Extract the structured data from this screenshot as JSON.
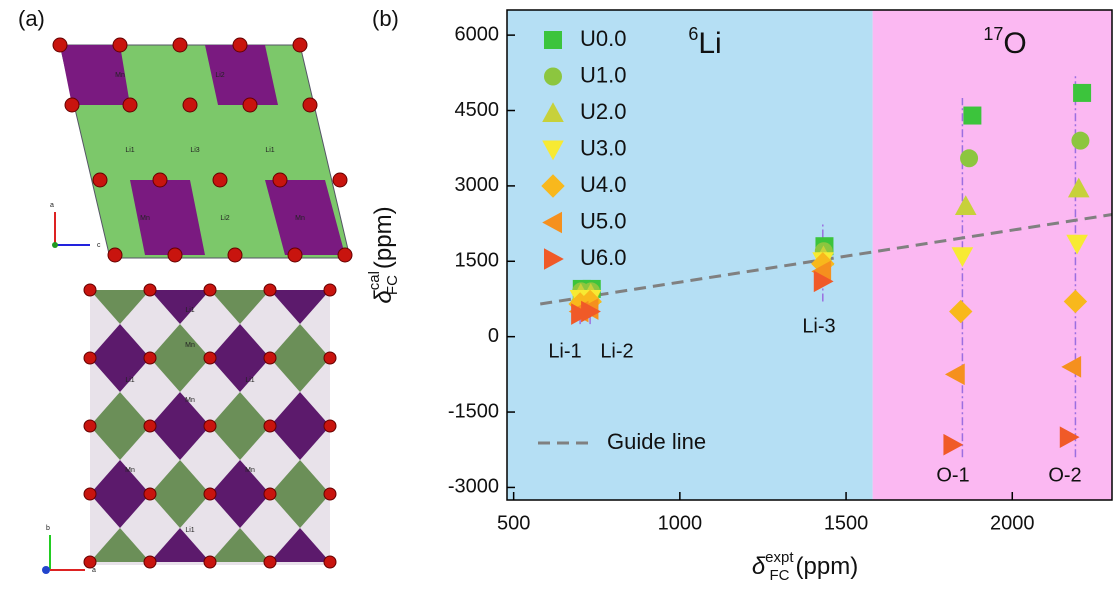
{
  "panel_a": {
    "label": "(a)",
    "top_atoms": [
      "Mn",
      "Li2",
      "Li1",
      "Li3",
      "Li1",
      "Mn",
      "Li2",
      "Mn"
    ],
    "top_axes": [
      "a",
      "c"
    ],
    "bottom_atoms": [
      "Li1",
      "Mn",
      "Mn",
      "Li1",
      "Li1",
      "Mn",
      "Mn",
      "Li1"
    ],
    "bottom_axes": [
      "b",
      "a"
    ]
  },
  "chart_data": {
    "type": "scatter",
    "panel_label": "(b)",
    "x_label": {
      "symbol": "δ",
      "sup": "expt",
      "sub": "FC",
      "unit": "(ppm)"
    },
    "y_label": {
      "symbol": "δ",
      "sup": "cal",
      "sub": "FC",
      "unit": "(ppm)"
    },
    "regions": [
      {
        "sup": "6",
        "text": "Li",
        "x": [
          480,
          1580
        ],
        "color": "#b5dff4"
      },
      {
        "sup": "17",
        "text": "O",
        "x": [
          1580,
          2300
        ],
        "color": "#fbb8f2"
      }
    ],
    "xlim": [
      480,
      2300
    ],
    "ylim": [
      -3250,
      6500
    ],
    "xticks": [
      500,
      1000,
      1500,
      2000
    ],
    "yticks": [
      -3000,
      -1500,
      0,
      1500,
      3000,
      4500,
      6000
    ],
    "site_labels": [
      "Li-1",
      "Li-2",
      "Li-3",
      "O-1",
      "O-2"
    ],
    "site_lines": [
      {
        "x": 700,
        "y": [
          250,
          1050
        ]
      },
      {
        "x": 730,
        "y": [
          250,
          1050
        ]
      },
      {
        "x": 1430,
        "y": [
          700,
          2250
        ]
      },
      {
        "x": 1850,
        "y": [
          -2400,
          4750
        ]
      },
      {
        "x": 2190,
        "y": [
          -2400,
          5200
        ]
      }
    ],
    "site_line_color": "#9b6fe0",
    "series": [
      {
        "name": "U0.0",
        "marker": "square",
        "color": "#3cc43c",
        "x": [
          705,
          735,
          1435,
          1880,
          2210
        ],
        "values": [
          950,
          950,
          1800,
          4400,
          4850
        ]
      },
      {
        "name": "U1.0",
        "marker": "circle",
        "color": "#8cc63f",
        "x": [
          703,
          733,
          1433,
          1870,
          2205
        ],
        "values": [
          900,
          900,
          1700,
          3550,
          3900
        ]
      },
      {
        "name": "U2.0",
        "marker": "triangle-up",
        "color": "#c7d13a",
        "x": [
          702,
          732,
          1432,
          1860,
          2200
        ],
        "values": [
          850,
          850,
          1600,
          2600,
          2950
        ]
      },
      {
        "name": "U3.0",
        "marker": "triangle-down",
        "color": "#f7ea33",
        "x": [
          701,
          731,
          1431,
          1850,
          2195
        ],
        "values": [
          750,
          750,
          1500,
          1600,
          1850
        ]
      },
      {
        "name": "U4.0",
        "marker": "diamond",
        "color": "#f8b81c",
        "x": [
          700,
          730,
          1430,
          1845,
          2190
        ],
        "values": [
          650,
          700,
          1450,
          500,
          700
        ]
      },
      {
        "name": "U5.0",
        "marker": "triangle-left",
        "color": "#f5901e",
        "x": [
          698,
          728,
          1428,
          1830,
          2180
        ],
        "values": [
          500,
          550,
          1300,
          -750,
          -600
        ]
      },
      {
        "name": "U6.0",
        "marker": "triangle-right",
        "color": "#f05a28",
        "x": [
          700,
          730,
          1430,
          1820,
          2170
        ],
        "values": [
          450,
          500,
          1100,
          -2150,
          -2000
        ]
      }
    ],
    "guide_line": {
      "name": "Guide line",
      "color": "#808080",
      "x": [
        580,
        2300
      ],
      "values": [
        650,
        2430
      ]
    }
  }
}
